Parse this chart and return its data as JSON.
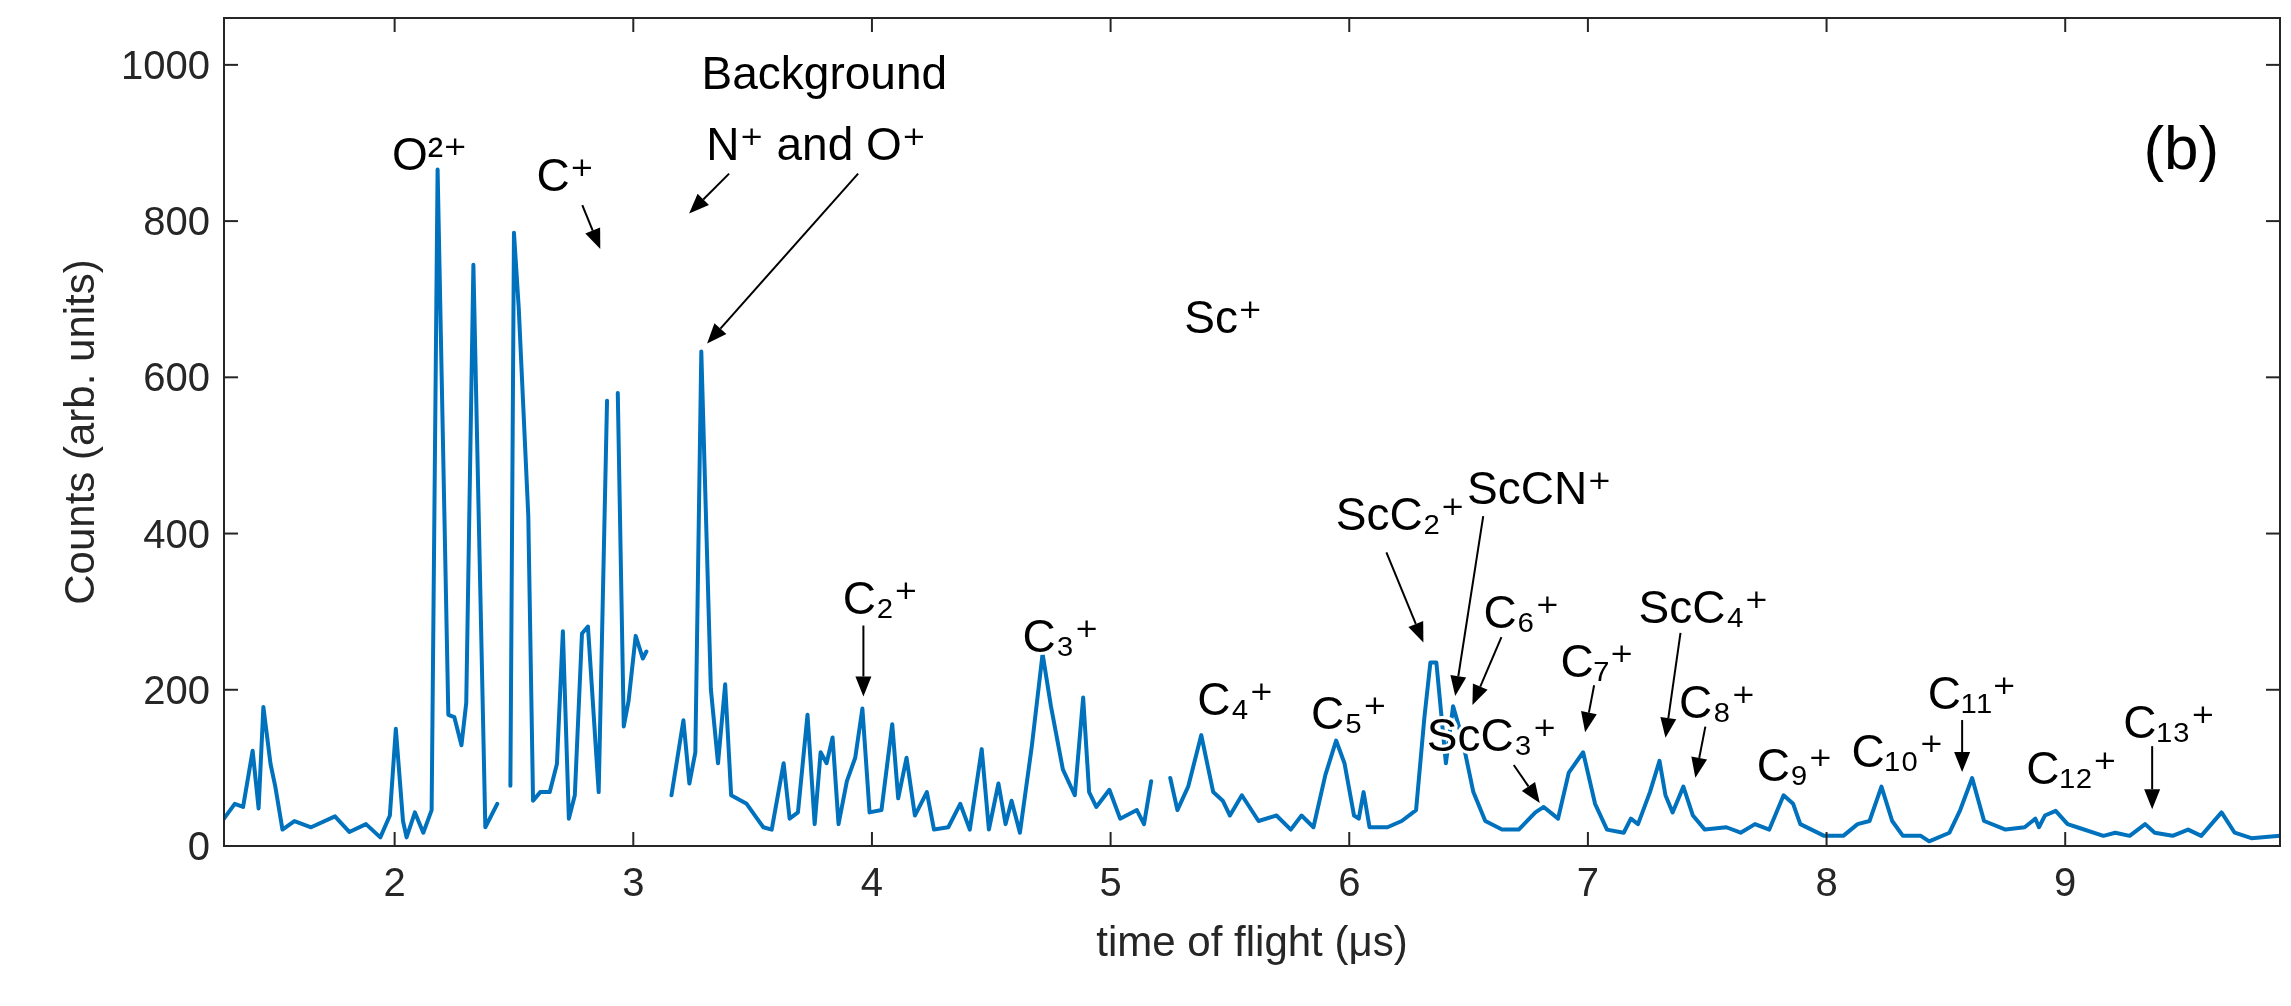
{
  "chart_data": {
    "type": "line",
    "xlabel": "time of flight (μs)",
    "ylabel": "Counts (arb. units)",
    "xlim": [
      1.285,
      9.9
    ],
    "ylim": [
      0,
      1060
    ],
    "xticks": [
      2,
      3,
      4,
      5,
      6,
      7,
      8,
      9
    ],
    "yticks": [
      0,
      200,
      400,
      600,
      800,
      1000
    ],
    "grid": false,
    "marker": "none",
    "line_style": "solid",
    "x": [
      1.285,
      1.33,
      1.365,
      1.405,
      1.43,
      1.45,
      1.48,
      1.5,
      1.53,
      1.58,
      1.65,
      1.75,
      1.81,
      1.88,
      1.94,
      1.98,
      2.005,
      2.035,
      2.05,
      2.085,
      2.12,
      2.155,
      2.18,
      2.225,
      2.25,
      2.28,
      2.3,
      2.33,
      2.38,
      2.43,
      2.455,
      2.475,
      2.485,
      2.5,
      2.52,
      2.56,
      2.58,
      2.61,
      2.65,
      2.68,
      2.705,
      2.73,
      2.755,
      2.785,
      2.81,
      2.855,
      2.89,
      2.9,
      2.915,
      2.935,
      2.96,
      2.98,
      3.01,
      3.04,
      3.055,
      3.085,
      3.125,
      3.16,
      3.21,
      3.235,
      3.26,
      3.285,
      3.325,
      3.355,
      3.385,
      3.41,
      3.475,
      3.51,
      3.545,
      3.58,
      3.63,
      3.655,
      3.69,
      3.73,
      3.76,
      3.785,
      3.81,
      3.835,
      3.86,
      3.895,
      3.93,
      3.96,
      3.99,
      4.04,
      4.085,
      4.11,
      4.145,
      4.18,
      4.23,
      4.26,
      4.32,
      4.37,
      4.41,
      4.46,
      4.49,
      4.53,
      4.56,
      4.585,
      4.62,
      4.67,
      4.715,
      4.75,
      4.8,
      4.85,
      4.885,
      4.91,
      4.94,
      4.995,
      5.04,
      5.11,
      5.14,
      5.17,
      5.205,
      5.225,
      5.25,
      5.28,
      5.325,
      5.38,
      5.41,
      5.43,
      5.47,
      5.5,
      5.55,
      5.62,
      5.695,
      5.755,
      5.8,
      5.85,
      5.9,
      5.945,
      5.98,
      6.02,
      6.04,
      6.06,
      6.085,
      6.16,
      6.22,
      6.28,
      6.315,
      6.34,
      6.365,
      6.405,
      6.435,
      6.47,
      6.52,
      6.57,
      6.64,
      6.71,
      6.78,
      6.815,
      6.875,
      6.92,
      6.98,
      7.03,
      7.08,
      7.15,
      7.18,
      7.21,
      7.26,
      7.3,
      7.325,
      7.355,
      7.4,
      7.44,
      7.49,
      7.58,
      7.64,
      7.7,
      7.76,
      7.82,
      7.86,
      7.89,
      7.99,
      8.07,
      8.13,
      8.18,
      8.23,
      8.275,
      8.32,
      8.395,
      8.43,
      8.515,
      8.56,
      8.61,
      8.66,
      8.75,
      8.83,
      8.875,
      8.89,
      8.915,
      8.96,
      9.01,
      9.05,
      9.16,
      9.21,
      9.27,
      9.335,
      9.375,
      9.45,
      9.515,
      9.57,
      9.655,
      9.71,
      9.78,
      9.9
    ],
    "series": [
      {
        "color": "#0072bd",
        "values": [
          35,
          54,
          50,
          122,
          48,
          178,
          105,
          76,
          21,
          32,
          24,
          38,
          18,
          28,
          11,
          39,
          150,
          32,
          11,
          43,
          17,
          46,
          866,
          168,
          165,
          129,
          183,
          744,
          24,
          54,
          null,
          null,
          77,
          785,
          689,
          423,
          58,
          69,
          69,
          105,
          275,
          35,
          65,
          272,
          281,
          69,
          570,
          null,
          null,
          580,
          153,
          185,
          269,
          240,
          249,
          null,
          null,
          65,
          161,
          80,
          120,
          633,
          201,
          106,
          207,
          65,
          54,
          39,
          24,
          21,
          106,
          35,
          43,
          168,
          28,
          120,
          106,
          139,
          28,
          83,
          113,
          176,
          43,
          46,
          156,
          61,
          113,
          39,
          69,
          21,
          24,
          54,
          21,
          124,
          21,
          80,
          28,
          58,
          17,
          128,
          246,
          179,
          98,
          65,
          190,
          69,
          50,
          72,
          35,
          46,
          28,
          83,
          null,
          null,
          87,
          46,
          76,
          142,
          98,
          69,
          58,
          39,
          65,
          32,
          39,
          21,
          39,
          24,
          91,
          135,
          106,
          39,
          35,
          69,
          24,
          24,
          32,
          46,
          165,
          235,
          235,
          106,
          179,
          142,
          69,
          32,
          21,
          21,
          43,
          50,
          35,
          94,
          120,
          54,
          21,
          17,
          35,
          28,
          69,
          109,
          65,
          43,
          76,
          39,
          21,
          24,
          17,
          28,
          21,
          65,
          54,
          28,
          13,
          13,
          28,
          32,
          76,
          32,
          13,
          13,
          6,
          17,
          46,
          87,
          32,
          21,
          24,
          35,
          24,
          39,
          45,
          28,
          24,
          13,
          17,
          13,
          28,
          17,
          13,
          21,
          13,
          43,
          17,
          10,
          13
        ]
      }
    ],
    "annotations": [
      {
        "text": "O²⁺",
        "x": 2.18,
        "y": 866
      },
      "C⁺",
      "Background",
      "N⁺ and O⁺",
      "Sc⁺",
      {
        "text": "C₂⁺",
        "x": 3.96,
        "y": 176
      },
      {
        "text": "C₃⁺",
        "x": 4.715,
        "y": 246
      },
      {
        "text": "C₄⁺",
        "x": 5.38,
        "y": 142
      },
      {
        "text": "C₅⁺",
        "x": 5.945,
        "y": 135
      },
      {
        "text": "ScC₂⁺",
        "x": 6.34,
        "y": 235
      },
      "ScCN⁺",
      {
        "text": "C₆⁺",
        "x": 6.47,
        "y": 142
      },
      {
        "text": "ScC₃⁺",
        "x": 6.815,
        "y": 50
      },
      {
        "text": "C₇⁺",
        "x": 6.98,
        "y": 120
      },
      {
        "text": "ScC₄⁺",
        "x": 7.3,
        "y": 109
      },
      {
        "text": "C₈⁺",
        "x": 7.4,
        "y": 76
      },
      {
        "text": "C₉⁺",
        "x": 7.82,
        "y": 65
      },
      {
        "text": "C₁₀⁺",
        "x": 8.23,
        "y": 76
      },
      {
        "text": "C₁₁⁺",
        "x": 8.61,
        "y": 87
      },
      {
        "text": "C₁₂⁺",
        "x": 8.96,
        "y": 45
      },
      {
        "text": "C₁₃⁺",
        "x": 9.335,
        "y": 28
      },
      "(b)"
    ]
  }
}
